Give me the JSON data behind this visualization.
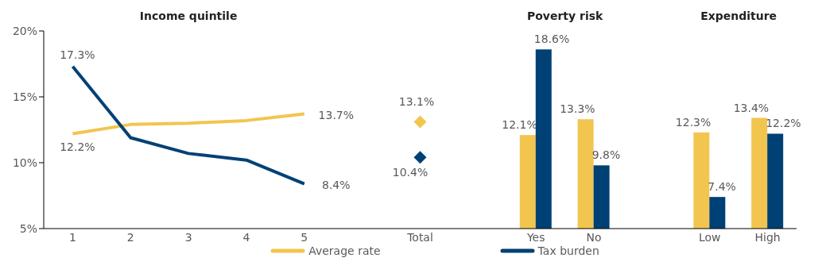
{
  "chart_data": {
    "type": "line",
    "categories": [
      "1",
      "2",
      "3",
      "4",
      "5",
      null,
      "Total",
      null,
      "Yes",
      "No",
      null,
      "Low",
      "High"
    ],
    "annotations": [
      "Income quintile",
      "Poverty risk",
      "Expenditure"
    ],
    "series": [
      {
        "name": "Average rate",
        "marker": "none",
        "color": "#f2c54f",
        "values": [
          12.2,
          12.9,
          13.0,
          13.2,
          13.7,
          null,
          null,
          null,
          null,
          null,
          null,
          null,
          null
        ],
        "value_labels": [
          "12.2%",
          null,
          null,
          null,
          "13.7%",
          null,
          null,
          null,
          null,
          null,
          null,
          null,
          null
        ]
      },
      {
        "name": "Tax burden",
        "marker": "none",
        "color": "#004175",
        "values": [
          17.3,
          11.9,
          10.7,
          10.2,
          8.4,
          null,
          null,
          null,
          null,
          null,
          null,
          null,
          null
        ],
        "value_labels": [
          "17.3%",
          null,
          null,
          null,
          "8.4%",
          null,
          null,
          null,
          null,
          null,
          null,
          null,
          null
        ]
      },
      {
        "type": "scatter",
        "marker": "diamond",
        "color": "#f2c54f",
        "values": [
          null,
          null,
          null,
          null,
          null,
          null,
          13.1,
          null,
          null,
          null,
          null,
          null,
          null
        ],
        "value_labels": [
          null,
          null,
          null,
          null,
          null,
          null,
          "13.1%",
          null,
          null,
          null,
          null,
          null,
          null
        ]
      },
      {
        "type": "scatter",
        "marker": "diamond",
        "color": "#004175",
        "values": [
          null,
          null,
          null,
          null,
          null,
          null,
          10.4,
          null,
          null,
          null,
          null,
          null,
          null
        ],
        "value_labels": [
          null,
          null,
          null,
          null,
          null,
          null,
          "10.4%",
          null,
          null,
          null,
          null,
          null,
          null
        ]
      },
      {
        "type": "bar",
        "color": "#f2c54f",
        "values": [
          null,
          null,
          null,
          null,
          null,
          null,
          null,
          null,
          12.1,
          13.3,
          null,
          12.3,
          13.4
        ],
        "value_labels": [
          null,
          null,
          null,
          null,
          null,
          null,
          null,
          null,
          "12.1%",
          "13.3%",
          null,
          "12.3%",
          "13.4%"
        ]
      },
      {
        "type": "bar",
        "color": "#004175",
        "values": [
          null,
          null,
          null,
          null,
          null,
          null,
          null,
          null,
          18.6,
          9.8,
          null,
          7.4,
          12.2
        ],
        "value_labels": [
          null,
          null,
          null,
          null,
          null,
          null,
          null,
          null,
          "18.6%",
          "9.8%",
          null,
          "7.4%",
          "12.2%"
        ]
      }
    ],
    "ylim": [
      5,
      20
    ],
    "yticks": [
      {
        "value": 5,
        "label": "5%"
      },
      {
        "value": 10,
        "label": "10%"
      },
      {
        "value": 15,
        "label": "15%"
      },
      {
        "value": 20,
        "label": "20%"
      }
    ],
    "grid": false,
    "legend": "bottom"
  }
}
